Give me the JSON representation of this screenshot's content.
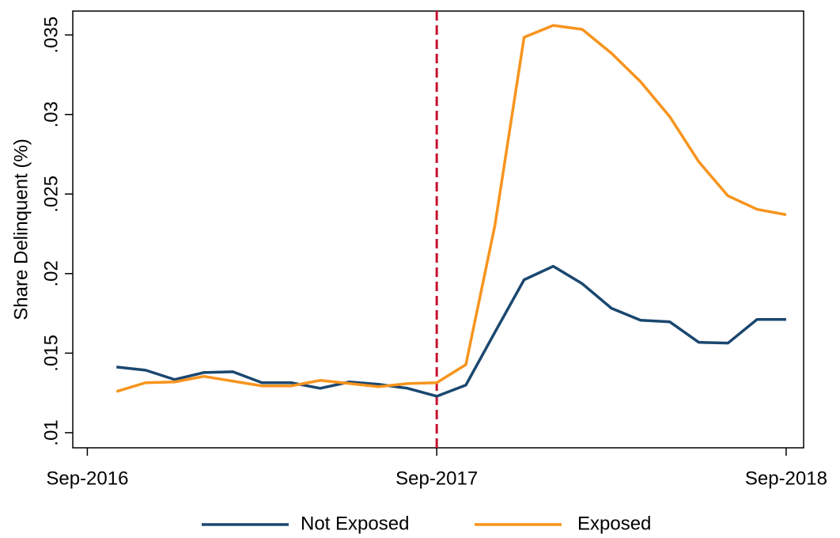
{
  "chart_data": {
    "type": "line",
    "ylabel": "Share Delinquent (%)",
    "x": [
      1,
      2,
      3,
      4,
      5,
      6,
      7,
      8,
      9,
      10,
      11,
      12,
      13,
      14,
      15,
      16,
      17,
      18,
      19,
      20,
      21,
      22,
      23,
      24
    ],
    "series": [
      {
        "name": "Not Exposed",
        "color": "#1a476f",
        "values": [
          0.01413,
          0.01393,
          0.01334,
          0.01378,
          0.01383,
          0.01314,
          0.01314,
          0.01279,
          0.01319,
          0.01304,
          0.01279,
          0.01229,
          0.01299,
          0.01632,
          0.01961,
          0.02046,
          0.01936,
          0.01782,
          0.01707,
          0.01697,
          0.01568,
          0.01563,
          0.01712,
          0.01712
        ]
      },
      {
        "name": "Exposed",
        "color": "#f7941d",
        "values": [
          0.01259,
          0.01314,
          0.01319,
          0.01354,
          0.01324,
          0.01294,
          0.01294,
          0.01329,
          0.01309,
          0.01289,
          0.01309,
          0.01314,
          0.01428,
          0.02305,
          0.03485,
          0.0356,
          0.03535,
          0.03385,
          0.03206,
          0.02987,
          0.02703,
          0.02489,
          0.02404,
          0.0237
        ]
      }
    ],
    "xlim": [
      -0.5,
      24.6
    ],
    "xticks": [
      {
        "value": 0,
        "label": "Sep-2016"
      },
      {
        "value": 12,
        "label": "Sep-2017"
      },
      {
        "value": 24,
        "label": "Sep-2018"
      }
    ],
    "ylim": [
      0.00905,
      0.0365
    ],
    "yticks": [
      {
        "value": 0.01,
        "label": ".01"
      },
      {
        "value": 0.015,
        "label": ".015"
      },
      {
        "value": 0.02,
        "label": ".02"
      },
      {
        "value": 0.025,
        "label": ".025"
      },
      {
        "value": 0.03,
        "label": ".03"
      },
      {
        "value": 0.035,
        "label": ".035"
      }
    ],
    "vline": {
      "x": 12,
      "color": "#c8102e"
    },
    "legend": "bottom"
  }
}
